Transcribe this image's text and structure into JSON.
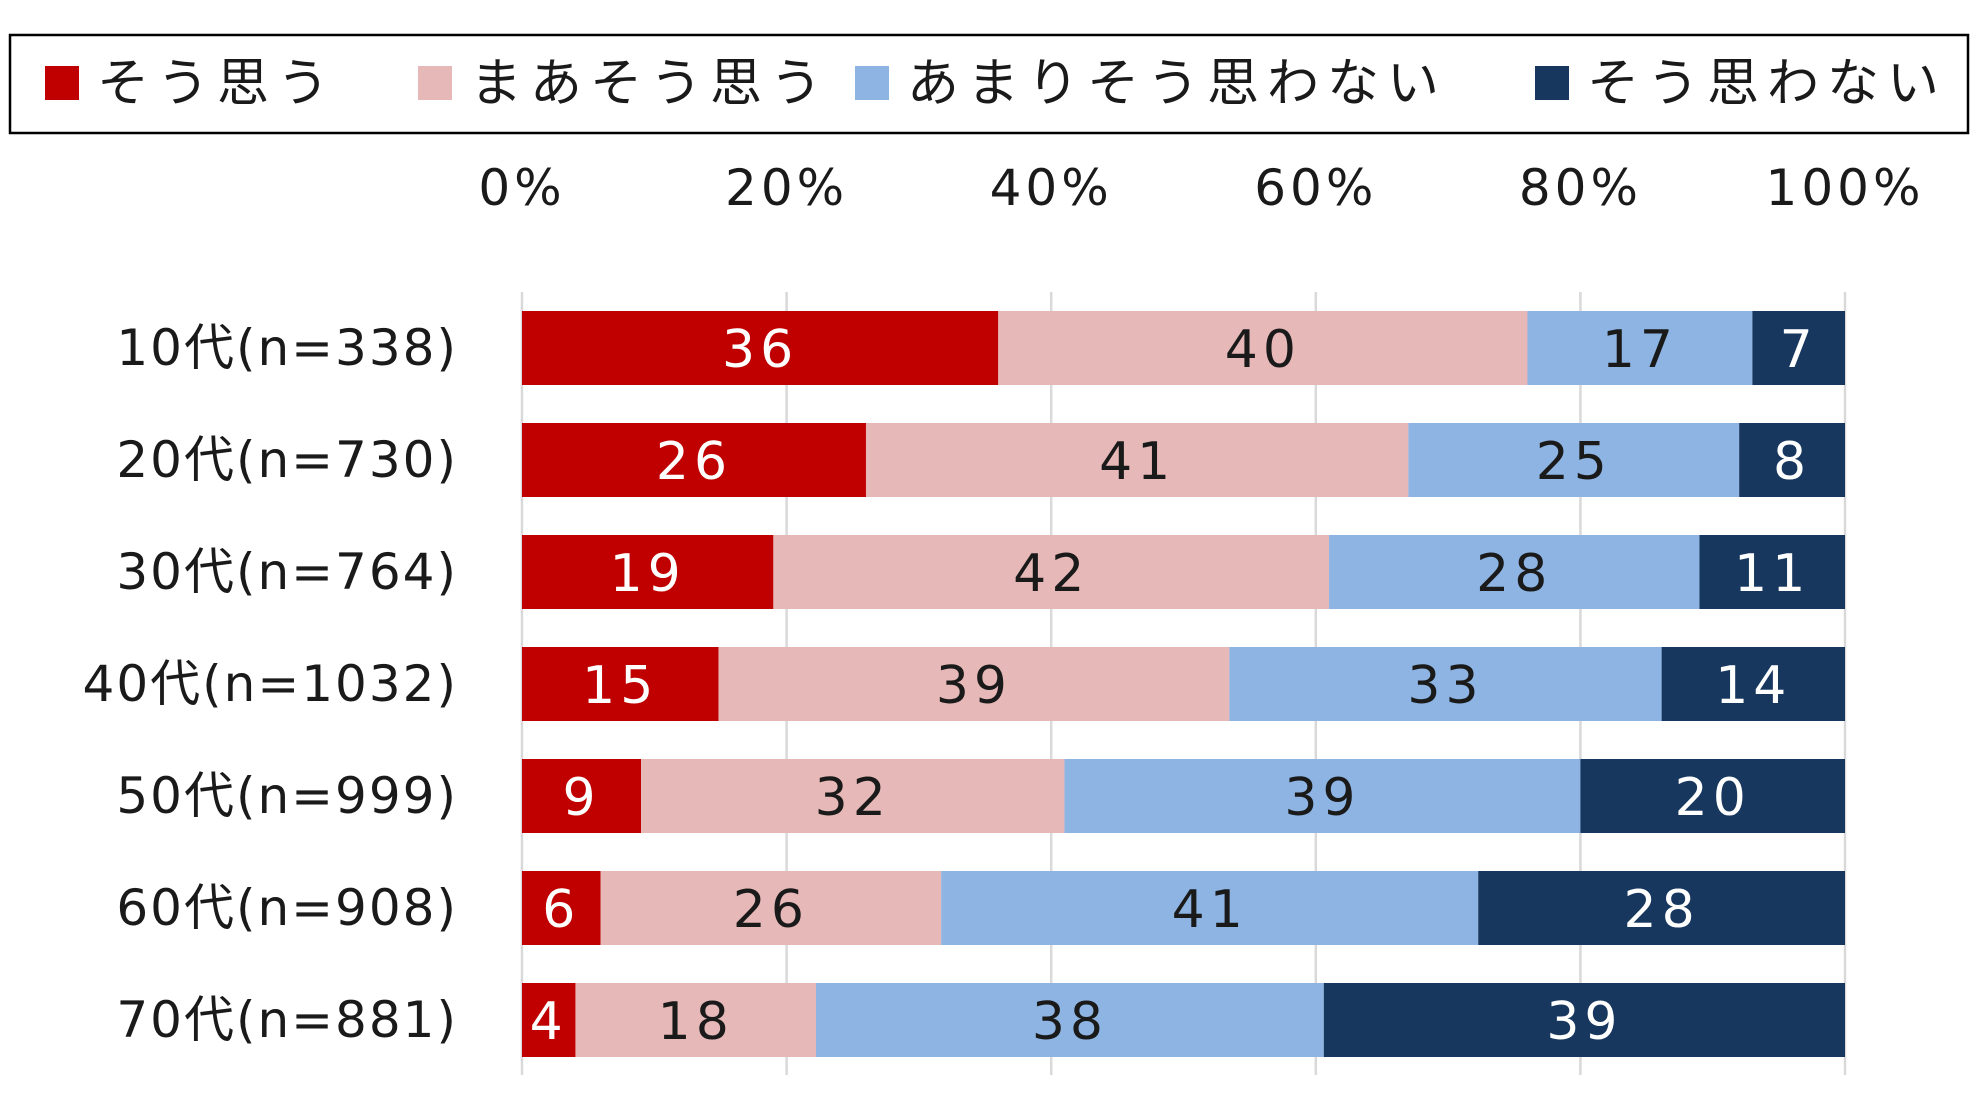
{
  "chart_data": {
    "type": "bar",
    "orientation": "horizontal",
    "stacked": true,
    "title": "",
    "xlabel": "",
    "ylabel": "",
    "xlim": [
      0,
      100
    ],
    "x_ticks": [
      "0%",
      "20%",
      "40%",
      "60%",
      "80%",
      "100%"
    ],
    "x_tick_position": "top",
    "grid": true,
    "legend_position": "top",
    "categories": [
      "10代(n=338)",
      "20代(n=730)",
      "30代(n=764)",
      "40代(n=1032)",
      "50代(n=999)",
      "60代(n=908)",
      "70代(n=881)"
    ],
    "series": [
      {
        "name": "そう思う",
        "color": "#c00000",
        "label_color": "#ffffff",
        "values": [
          36,
          26,
          19,
          15,
          9,
          6,
          4
        ]
      },
      {
        "name": "まあそう思う",
        "color": "#e6b8b7",
        "label_color": "#1a1a1a",
        "values": [
          40,
          41,
          42,
          39,
          32,
          26,
          18
        ]
      },
      {
        "name": "あまりそう思わない",
        "color": "#8db4e2",
        "label_color": "#1a1a1a",
        "values": [
          17,
          25,
          28,
          33,
          39,
          41,
          38
        ]
      },
      {
        "name": "そう思わない",
        "color": "#17375e",
        "label_color": "#ffffff",
        "values": [
          7,
          8,
          11,
          14,
          20,
          28,
          39
        ]
      }
    ]
  }
}
